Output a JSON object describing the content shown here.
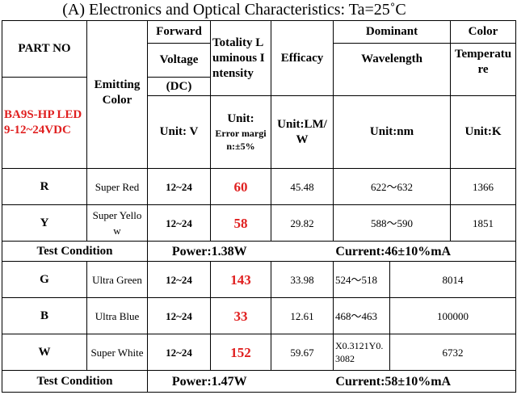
{
  "title": "(A) Electronics and Optical Characteristics: Ta=25˚C",
  "header": {
    "part_no": "PART NO",
    "emitting_color": "Emitting Color",
    "forward": "Forward",
    "voltage": "Voltage",
    "dc": "(DC)",
    "intensity": "Totality Luminous Intensity",
    "efficacy": "Efficacy",
    "dominant": "Dominant",
    "wavelength": "Wavelength",
    "color": "Color",
    "temperature": "Temperature"
  },
  "model": "BA9S-HP LED 9-12~24VDC",
  "units": {
    "voltage": "Unit: V",
    "intensity": "Unit:",
    "intensity_note": "Error margin:±5%",
    "efficacy": "Unit:LM/W",
    "wavelength": "Unit:nm",
    "temperature": "Unit:K"
  },
  "rows": [
    {
      "part": "R",
      "color": "Super Red",
      "voltage": "12~24",
      "intensity": 60,
      "efficacy": 45.48,
      "wavelength": "622～632",
      "temperature": 1366
    },
    {
      "part": "Y",
      "color": "Super Yellow",
      "voltage": "12~24",
      "intensity": 58,
      "efficacy": 29.82,
      "wavelength": "588～590",
      "temperature": 1851
    },
    {
      "part": "G",
      "color": "Ultra Green",
      "voltage": "12~24",
      "intensity": 143,
      "efficacy": 33.98,
      "wavelength": "524～518",
      "temperature": 8014
    },
    {
      "part": "B",
      "color": "Ultra Blue",
      "voltage": "12~24",
      "intensity": 33,
      "efficacy": 12.61,
      "wavelength": "468～463",
      "temperature": 100000
    },
    {
      "part": "W",
      "color": "Super White",
      "voltage": "12~24",
      "intensity": 152,
      "efficacy": 59.67,
      "wavelength": "X0.3121Y0.3082",
      "temperature": 6732
    }
  ],
  "tests": [
    {
      "label": "Test Condition",
      "power": "Power:1.38W",
      "current": "Current:46±10%mA"
    },
    {
      "label": "Test Condition",
      "power": "Power:1.47W",
      "current": "Current:58±10%mA"
    }
  ]
}
